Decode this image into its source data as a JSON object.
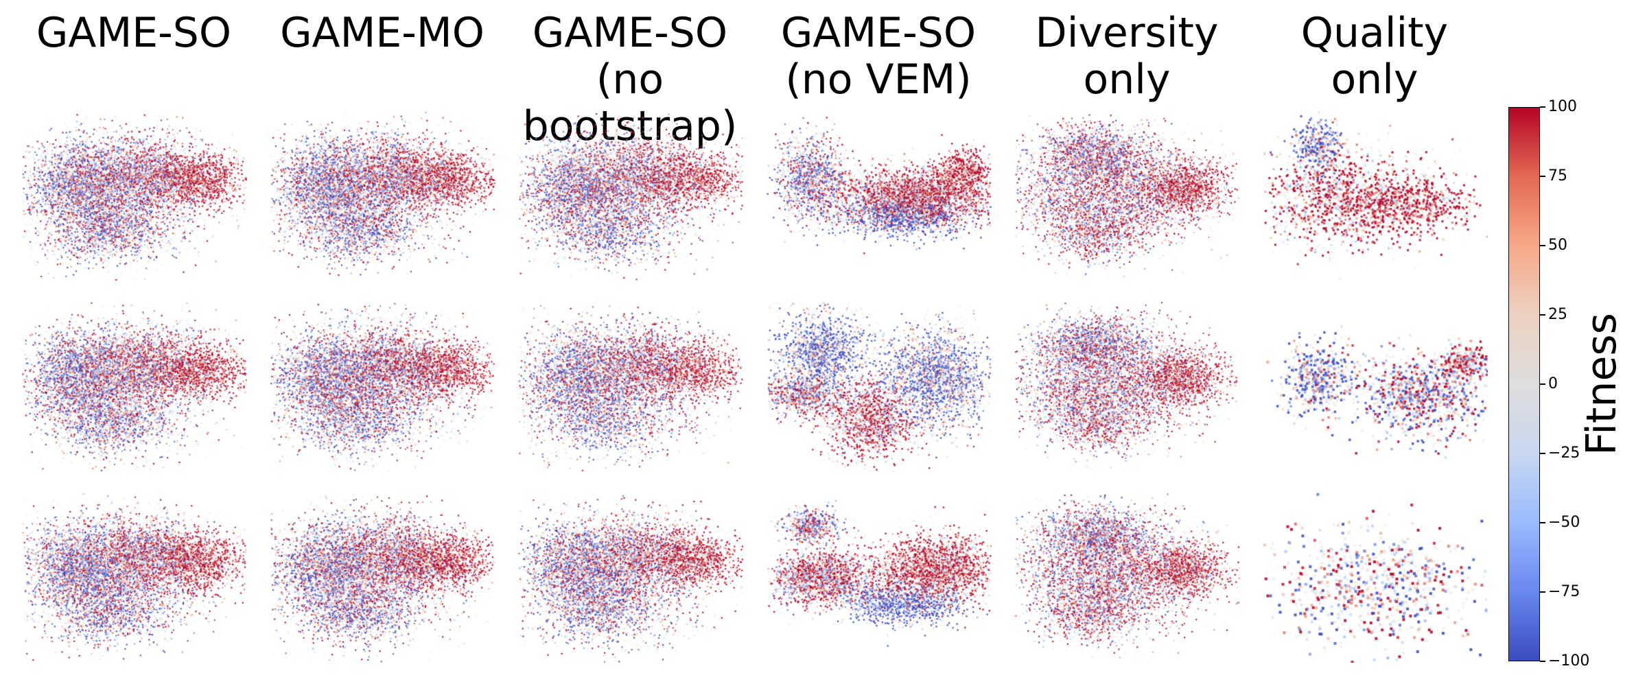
{
  "chart_data": {
    "type": "scatter",
    "description_hint": "3 rows x 6 columns grid of 2-D embedding scatter plots, points colored by fitness",
    "columns": [
      "GAME-SO",
      "GAME-MO",
      "GAME-SO\n(no bootstrap)",
      "GAME-SO\n(no VEM)",
      "Diversity\nonly",
      "Quality\nonly"
    ],
    "rows": 3,
    "colorbar": {
      "label": "Fitness",
      "min": -100,
      "max": 100,
      "ticks": [
        100,
        75,
        50,
        25,
        0,
        -25,
        -50,
        -75,
        -100
      ],
      "tick_labels": [
        "100",
        "75",
        "50",
        "25",
        "0",
        "−25",
        "−50",
        "−75",
        "−100"
      ],
      "colormap": "coolwarm",
      "colors": [
        "#3b4cc0",
        "#6788ee",
        "#9abbff",
        "#c9d7f0",
        "#dddddd",
        "#edd1c2",
        "#f7a889",
        "#e36a53",
        "#b40426"
      ]
    },
    "axes_visible": false,
    "grid": false
  }
}
